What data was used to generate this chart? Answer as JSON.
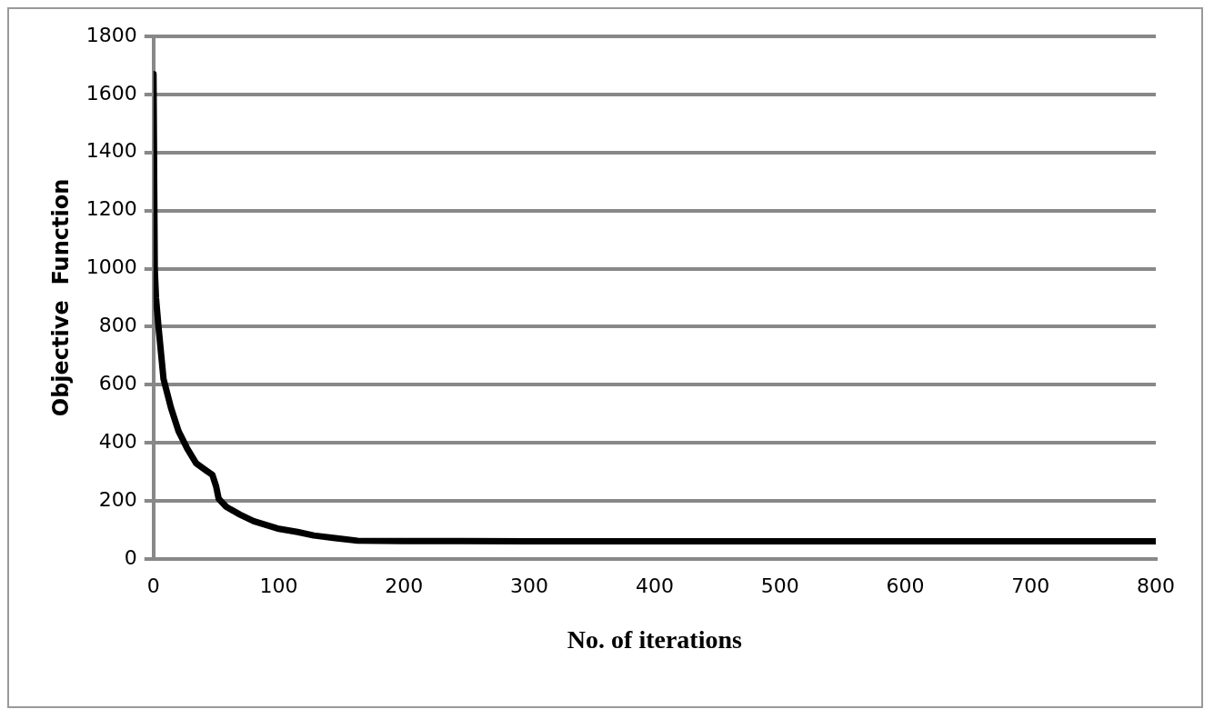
{
  "chart_data": {
    "type": "line",
    "xlabel": "No. of iterations",
    "ylabel": "Objective  Function",
    "series": [
      {
        "color": "#000000",
        "x": [
          0,
          1,
          2,
          4,
          8,
          14,
          20,
          27,
          34,
          42,
          47,
          50,
          52,
          58,
          69,
          80,
          99,
          115,
          128,
          145,
          163,
          200,
          300,
          400,
          500,
          600,
          700,
          800
        ],
        "values": [
          1670,
          1000,
          900,
          800,
          620,
          520,
          440,
          380,
          330,
          305,
          290,
          250,
          208,
          180,
          153,
          130,
          105,
          93,
          81,
          72,
          63,
          62,
          61,
          61,
          61,
          61,
          61,
          61
        ]
      }
    ],
    "xlim": [
      0,
      800
    ],
    "xticks": [
      0,
      100,
      200,
      300,
      400,
      500,
      600,
      700,
      800
    ],
    "ylim": [
      0,
      1800
    ],
    "yticks": [
      0,
      200,
      400,
      600,
      800,
      1000,
      1200,
      1400,
      1600,
      1800
    ],
    "grid": "y",
    "legend": false,
    "marker": "none",
    "line_style": "solid"
  }
}
